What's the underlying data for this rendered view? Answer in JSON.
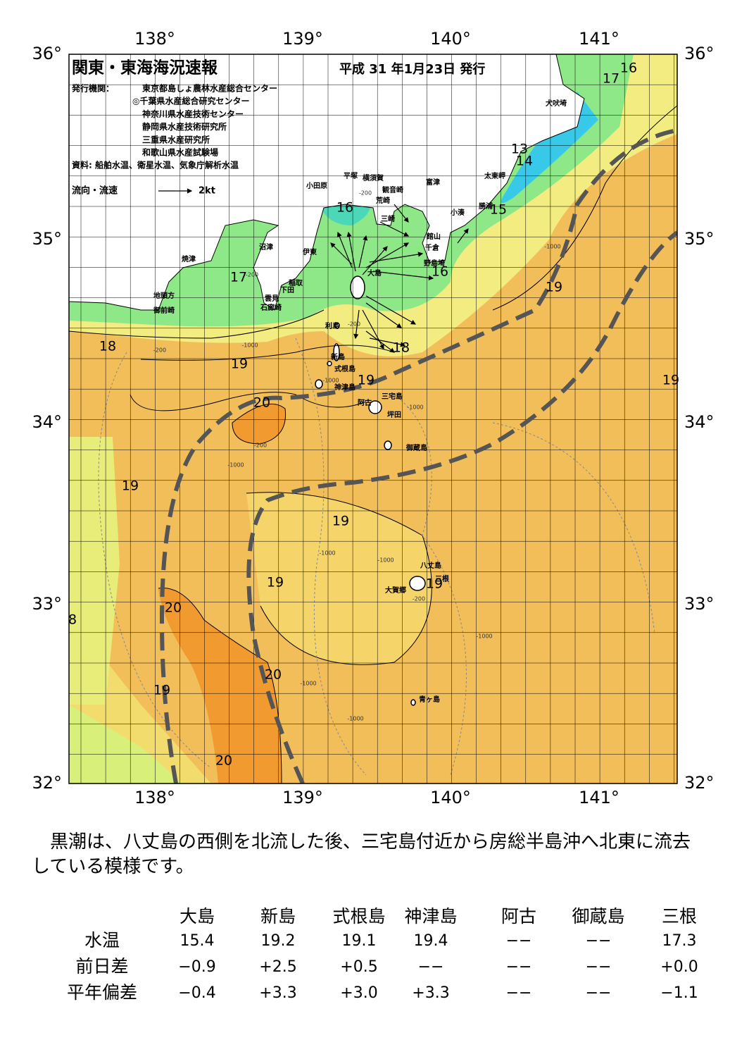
{
  "map": {
    "title": "関東・東海海況速報",
    "issued": "平成 31 年1月23日 発行",
    "issuer_label": "発行機関：",
    "issuers": [
      "東京都島しょ農林水産総合センター",
      "◎千葉県水産総合研究センター",
      "神奈川県水産技術センター",
      "静岡県水産技術研究所",
      "三重県水産研究所",
      "和歌山県水産試験場"
    ],
    "source": "資料: 船舶水温、衛星水温、気象庁解析水温",
    "current_legend": "流向・流速",
    "current_scale": "2kt",
    "lon_labels": [
      "138°",
      "139°",
      "140°",
      "141°"
    ],
    "lat_labels": [
      "36°",
      "35°",
      "34°",
      "33°",
      "32°"
    ],
    "places": [
      "犬吠埼",
      "太東岬",
      "勝浦",
      "小湊",
      "富津",
      "館山",
      "千倉",
      "野島埼",
      "横須賀",
      "観音崎",
      "平塚",
      "荒崎",
      "三崎",
      "小田原",
      "沼津",
      "伊東",
      "稲取",
      "下田",
      "雲見",
      "石廊崎",
      "焼津",
      "地頭方",
      "御前崎",
      "大島",
      "利島",
      "新島",
      "式根島",
      "神津島",
      "三宅島",
      "阿古",
      "坪田",
      "御蔵島",
      "八丈島",
      "三根",
      "大賀郷",
      "青ヶ島"
    ],
    "isotherm_labels": [
      "16",
      "17",
      "13",
      "14",
      "15",
      "16",
      "16",
      "17",
      "19",
      "18",
      "19",
      "18",
      "19",
      "20",
      "19",
      "19",
      "19",
      "19",
      "19",
      "20",
      "8",
      "20",
      "19",
      "20"
    ],
    "depth_labels": [
      "-200",
      "-200",
      "-1000",
      "-200",
      "-200",
      "-1000",
      "-1000",
      "-200",
      "-1000",
      "-1000",
      "-1000",
      "-1000",
      "-1000",
      "-1000",
      "-200",
      "-1000"
    ]
  },
  "summary": "黒潮は、八丈島の西側を北流した後、三宅島付近から房総半島沖へ北東に流去している模様です。",
  "table": {
    "columns": [
      "大島",
      "新島",
      "式根島",
      "神津島",
      "阿古",
      "御蔵島",
      "三根"
    ],
    "rows": [
      [
        "水温",
        "15.4",
        "19.2",
        "19.1",
        "19.4",
        "−−",
        "−−",
        "17.3"
      ],
      [
        "前日差",
        "−0.9",
        "+2.5",
        "+0.5",
        "−−",
        "−−",
        "−−",
        "+0.0"
      ],
      [
        "平年偏差",
        "−0.4",
        "+3.3",
        "+3.0",
        "+3.3",
        "−−",
        "−−",
        "−1.1"
      ]
    ]
  }
}
